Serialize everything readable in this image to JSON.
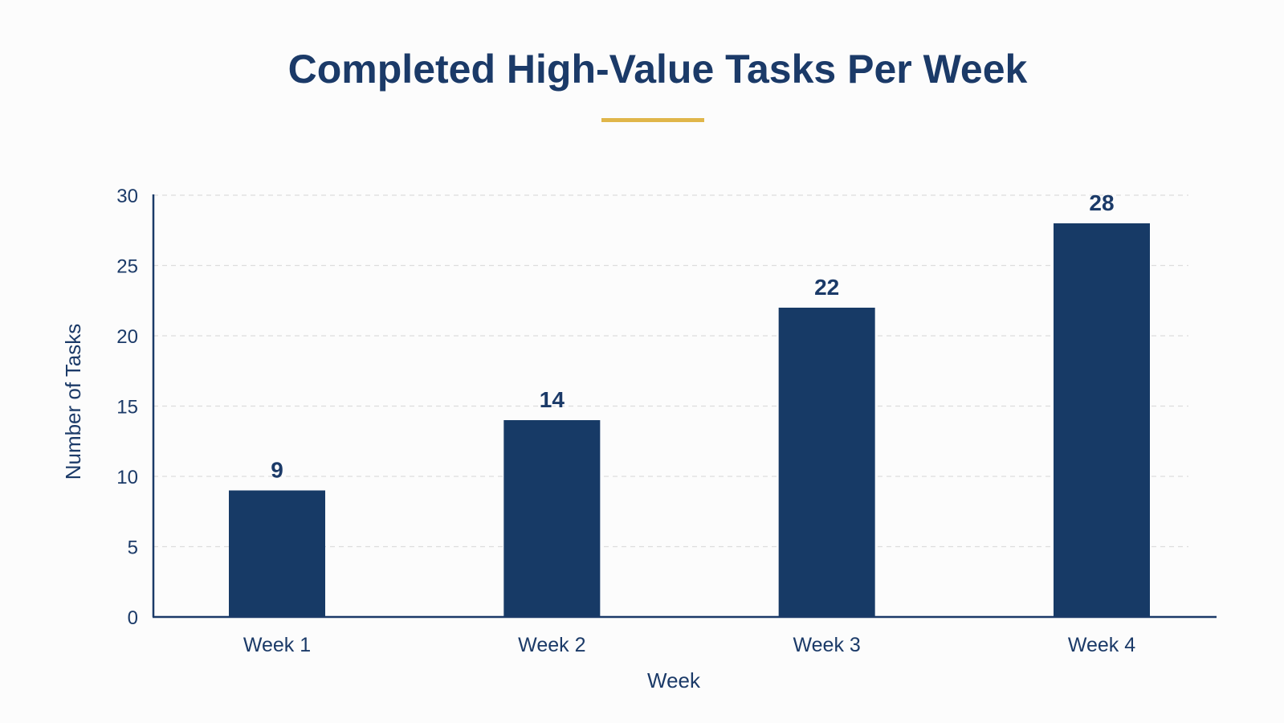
{
  "colors": {
    "bar": "#173a66",
    "text": "#1b3a68",
    "accent": "#e0b64a",
    "grid": "#dddddd",
    "background": "#fcfcfc"
  },
  "chart_data": {
    "type": "bar",
    "title": "Completed High-Value Tasks Per Week",
    "xlabel": "Week",
    "ylabel": "Number of Tasks",
    "categories": [
      "Week 1",
      "Week 2",
      "Week 3",
      "Week 4"
    ],
    "values": [
      9,
      14,
      22,
      28
    ],
    "ylim": [
      0,
      30
    ],
    "yticks": [
      0,
      5,
      10,
      15,
      20,
      25,
      30
    ],
    "grid": true,
    "data_labels": true
  }
}
